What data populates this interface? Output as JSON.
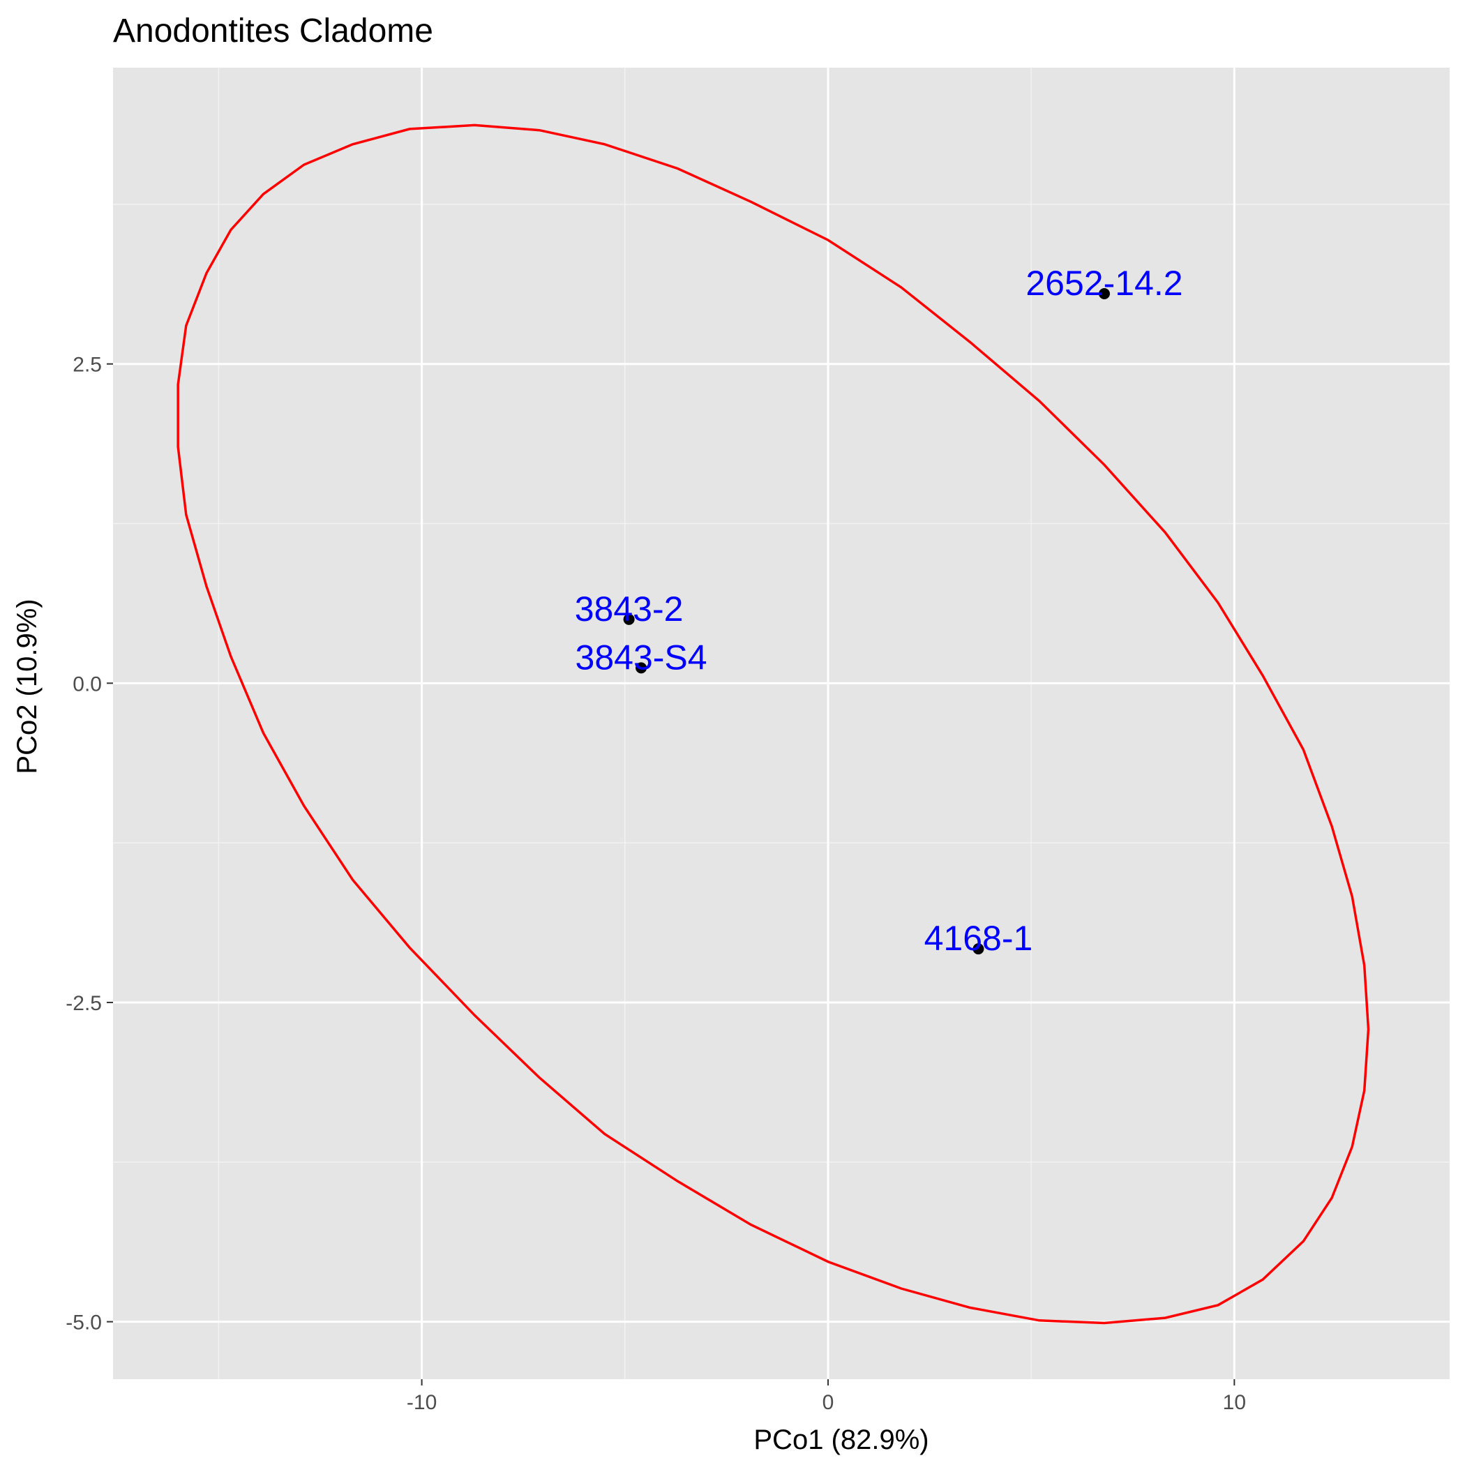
{
  "chart_data": {
    "type": "scatter",
    "title": "Anodontites Cladome",
    "xlabel": "PCo1 (82.9%)",
    "ylabel": "PCo2 (10.9%)",
    "xlim": [
      -17.6,
      15.3
    ],
    "ylim": [
      -5.45,
      4.82
    ],
    "x_ticks": [
      -10,
      0,
      10
    ],
    "x_tick_labels": [
      "-10",
      "0",
      "10"
    ],
    "x_minor_ticks": [
      -15,
      -5,
      5
    ],
    "y_ticks": [
      -5.0,
      -2.5,
      0.0,
      2.5
    ],
    "y_tick_labels": [
      "-5.0",
      "-2.5",
      "0.0",
      "2.5"
    ],
    "y_minor_ticks": [
      -3.75,
      -1.25,
      1.25,
      3.75
    ],
    "grid": true,
    "legend": "none",
    "points": [
      {
        "label": "2652-14.2",
        "x": 6.8,
        "y": 3.05
      },
      {
        "label": "3843-2",
        "x": -4.9,
        "y": 0.5
      },
      {
        "label": "3843-S4",
        "x": -4.6,
        "y": 0.12
      },
      {
        "label": "4168-1",
        "x": 3.7,
        "y": -2.08
      }
    ],
    "ellipse": [
      [
        -8.7,
        4.37
      ],
      [
        -7.1,
        4.33
      ],
      [
        -5.5,
        4.22
      ],
      [
        -3.7,
        4.03
      ],
      [
        -1.9,
        3.77
      ],
      [
        0.0,
        3.47
      ],
      [
        1.8,
        3.1
      ],
      [
        3.5,
        2.67
      ],
      [
        5.2,
        2.21
      ],
      [
        6.8,
        1.71
      ],
      [
        8.3,
        1.18
      ],
      [
        9.6,
        0.63
      ],
      [
        10.7,
        0.06
      ],
      [
        11.7,
        -0.52
      ],
      [
        12.4,
        -1.12
      ],
      [
        12.9,
        -1.67
      ],
      [
        13.2,
        -2.21
      ],
      [
        13.3,
        -2.71
      ],
      [
        13.2,
        -3.19
      ],
      [
        12.9,
        -3.63
      ],
      [
        12.4,
        -4.03
      ],
      [
        11.7,
        -4.37
      ],
      [
        10.7,
        -4.67
      ],
      [
        9.6,
        -4.87
      ],
      [
        8.3,
        -4.97
      ],
      [
        6.8,
        -5.01
      ],
      [
        5.2,
        -4.99
      ],
      [
        3.5,
        -4.89
      ],
      [
        1.8,
        -4.74
      ],
      [
        0.0,
        -4.53
      ],
      [
        -1.9,
        -4.24
      ],
      [
        -3.7,
        -3.9
      ],
      [
        -5.5,
        -3.53
      ],
      [
        -7.1,
        -3.09
      ],
      [
        -8.7,
        -2.6
      ],
      [
        -10.3,
        -2.07
      ],
      [
        -11.7,
        -1.54
      ],
      [
        -12.9,
        -0.96
      ],
      [
        -13.9,
        -0.39
      ],
      [
        -14.7,
        0.21
      ],
      [
        -15.3,
        0.76
      ],
      [
        -15.8,
        1.32
      ],
      [
        -16.0,
        1.85
      ],
      [
        -16.0,
        2.34
      ],
      [
        -15.8,
        2.8
      ],
      [
        -15.3,
        3.21
      ],
      [
        -14.7,
        3.55
      ],
      [
        -13.9,
        3.83
      ],
      [
        -12.9,
        4.06
      ],
      [
        -11.7,
        4.22
      ],
      [
        -10.3,
        4.34
      ],
      [
        -8.7,
        4.37
      ]
    ],
    "colors": {
      "panel_background": "#e5e5e5",
      "grid_major": "#ffffff",
      "grid_minor": "#f2f2f2",
      "ellipse": "#ff0000",
      "point": "#000000",
      "label": "#0000ff",
      "tick_text": "#4d4d4d",
      "tick_mark": "#333333"
    }
  }
}
